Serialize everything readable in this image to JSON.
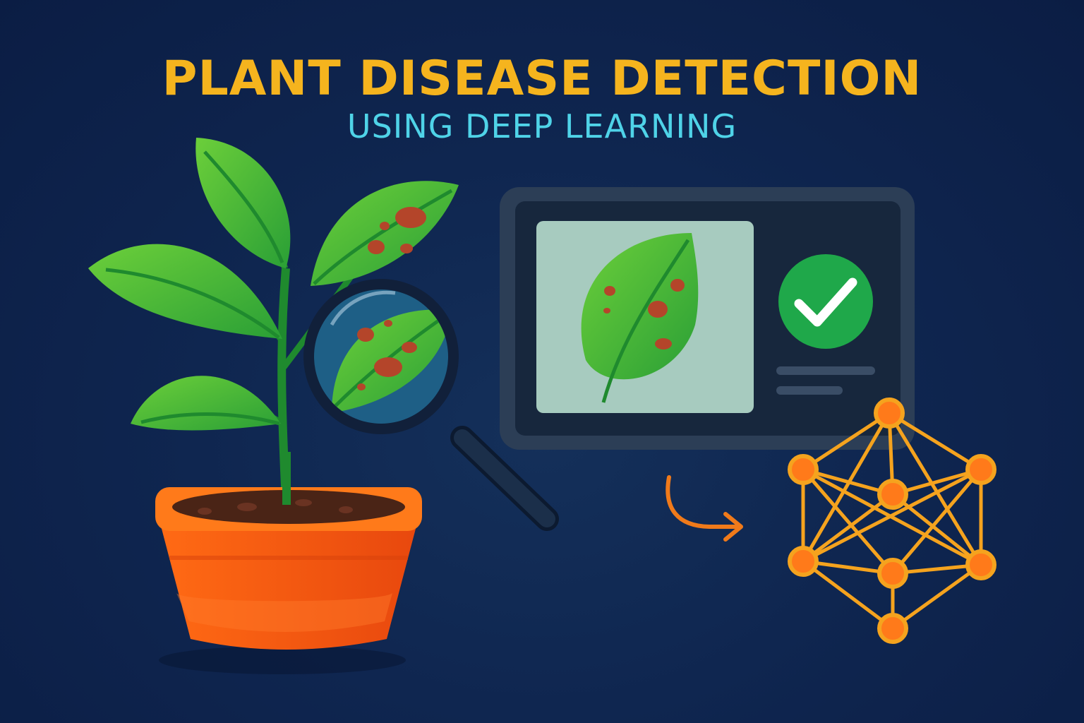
{
  "title": "PLANT DISEASE DETECTION",
  "subtitle": "USING DEEP LEARNING",
  "colors": {
    "background": "#0f2650",
    "title": "#f5b41e",
    "subtitle": "#4fd3e8",
    "leaf": "#3fb63a",
    "leaf_dark": "#1f8a2e",
    "spot": "#b4452a",
    "pot": "#f25a12",
    "pot_rim": "#ff7a1a",
    "soil": "#4a2416",
    "monitor_frame": "#2c3e56",
    "monitor_screen": "#17273d",
    "image_panel": "#a7cbbf",
    "check_circle": "#1fa84a",
    "network": "#f59a14",
    "arrow": "#f07a1a"
  },
  "icons": {
    "plant": "potted-plant-icon",
    "magnifier": "magnifying-glass-icon",
    "monitor": "monitor-icon",
    "check": "check-circle-icon",
    "arrow": "curved-arrow-icon",
    "network": "neural-network-icon"
  }
}
